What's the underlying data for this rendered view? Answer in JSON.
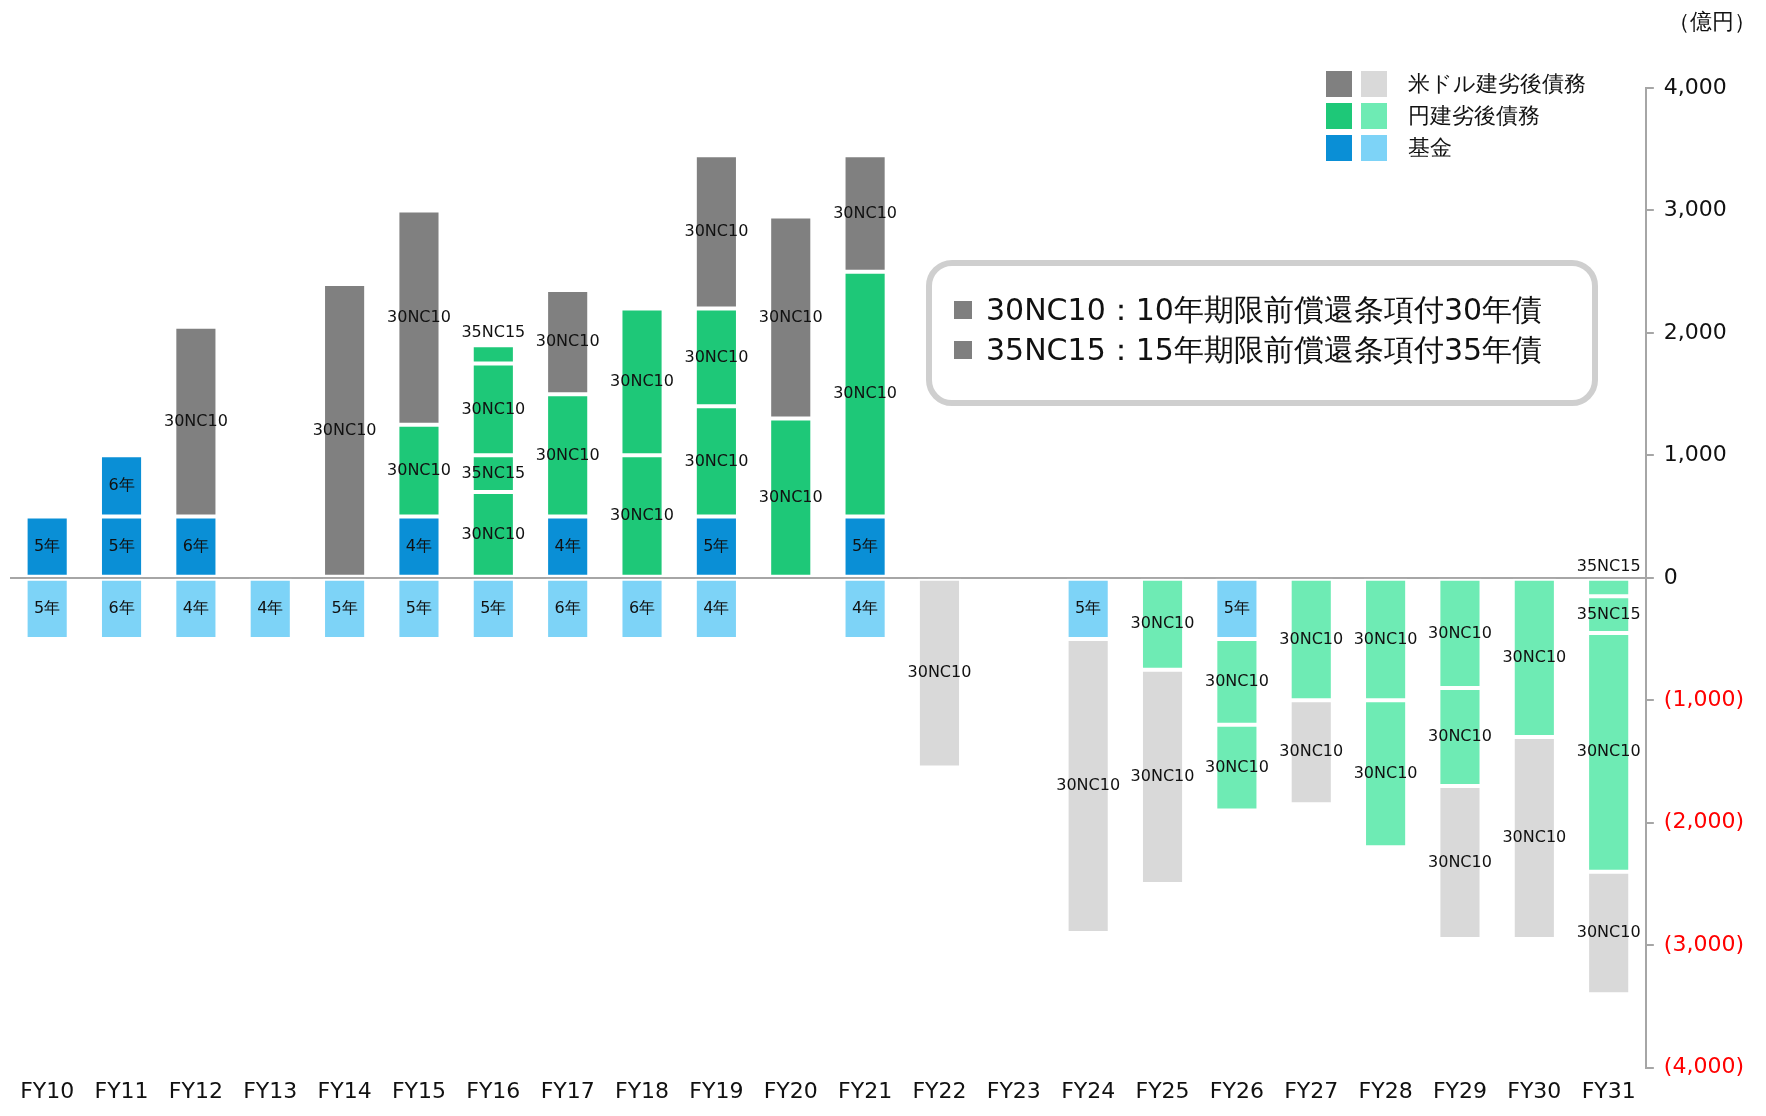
{
  "chart_data": {
    "type": "bar",
    "stacked": true,
    "ylabel": "（億円）",
    "legend": "top right",
    "categories": [
      "FY10",
      "FY11",
      "FY12",
      "FY13",
      "FY14",
      "FY15",
      "FY16",
      "FY17",
      "FY18",
      "FY19",
      "FY20",
      "FY21",
      "FY22",
      "FY23",
      "FY24",
      "FY25",
      "FY26",
      "FY27",
      "FY28",
      "FY29",
      "FY30",
      "FY31"
    ],
    "ylim": [
      -4000,
      4000
    ],
    "yticks": [
      {
        "value": -4000,
        "label": "(4,000)"
      },
      {
        "value": -3000,
        "label": "(3,000)"
      },
      {
        "value": -2000,
        "label": "(2,000)"
      },
      {
        "value": -1000,
        "label": "(1,000)"
      },
      0,
      {
        "value": 1000,
        "label": "1,000"
      },
      {
        "value": 2000,
        "label": "2,000"
      },
      {
        "value": 3000,
        "label": "3,000"
      },
      {
        "value": 4000,
        "label": "4,000"
      }
    ],
    "series": [
      {
        "name": "基金",
        "color": "#0a8fd6",
        "values": [
          500,
          500,
          500,
          null,
          null,
          500,
          null,
          500,
          null,
          500,
          null,
          500,
          null,
          null,
          null,
          null,
          null,
          null,
          null,
          null,
          null,
          null
        ]
      },
      {
        "color": "#0a8fd6",
        "values": [
          null,
          500,
          null,
          null,
          null,
          null,
          null,
          null,
          null,
          null,
          null,
          null,
          null,
          null,
          null,
          null,
          null,
          null,
          null,
          null,
          null,
          null
        ]
      },
      {
        "color": "#7dd3f7",
        "values": [
          -500,
          -500,
          -500,
          -500,
          -500,
          -500,
          -500,
          -500,
          -500,
          -500,
          null,
          -500,
          null,
          null,
          -500,
          null,
          -500,
          null,
          null,
          null,
          null,
          null
        ]
      },
      {
        "name": "円建劣後債務",
        "color": "#1ec878",
        "values": [
          null,
          null,
          null,
          null,
          null,
          750,
          700,
          1000,
          1000,
          900,
          1300,
          2000,
          null,
          null,
          null,
          null,
          null,
          null,
          null,
          null,
          null,
          null
        ]
      },
      {
        "color": "#1ec878",
        "values": [
          null,
          null,
          null,
          null,
          null,
          null,
          300,
          null,
          1200,
          800,
          null,
          null,
          null,
          null,
          null,
          null,
          null,
          null,
          null,
          null,
          null,
          null
        ]
      },
      {
        "color": "#1ec878",
        "values": [
          null,
          null,
          null,
          null,
          null,
          null,
          750,
          null,
          null,
          null,
          null,
          null,
          null,
          null,
          null,
          null,
          null,
          null,
          null,
          null,
          null,
          null
        ]
      },
      {
        "color": "#1ec878",
        "values": [
          null,
          null,
          null,
          null,
          null,
          null,
          150,
          null,
          null,
          null,
          null,
          null,
          null,
          null,
          null,
          null,
          null,
          null,
          null,
          null,
          null,
          null
        ]
      },
      {
        "color": "#6eebb4",
        "values": [
          null,
          null,
          null,
          null,
          null,
          null,
          null,
          null,
          null,
          null,
          null,
          null,
          null,
          null,
          null,
          -750,
          -700,
          -1000,
          -1000,
          -900,
          -1300,
          -150
        ]
      },
      {
        "color": "#6eebb4",
        "values": [
          null,
          null,
          null,
          null,
          null,
          null,
          null,
          null,
          null,
          null,
          null,
          null,
          null,
          null,
          null,
          null,
          -700,
          null,
          -1200,
          -800,
          null,
          -300
        ]
      },
      {
        "color": "#6eebb4",
        "values": [
          null,
          null,
          null,
          null,
          null,
          null,
          null,
          null,
          null,
          null,
          null,
          null,
          null,
          null,
          null,
          null,
          null,
          null,
          null,
          null,
          null,
          -1950
        ]
      },
      {
        "name": "米ドル建劣後債務",
        "color": "#808080",
        "values": [
          null,
          null,
          1550,
          null,
          2400,
          1750,
          null,
          850,
          null,
          1250,
          1650,
          950,
          null,
          null,
          null,
          null,
          null,
          null,
          null,
          null,
          null,
          null
        ]
      },
      {
        "color": "#d9d9d9",
        "values": [
          null,
          null,
          null,
          null,
          null,
          null,
          null,
          null,
          null,
          null,
          null,
          null,
          -1550,
          null,
          -2400,
          -1750,
          null,
          -850,
          null,
          -1250,
          -1650,
          -1000
        ]
      }
    ],
    "annotations": [
      "30NC10：10年期限前償還条項付30年債",
      "35NC15：15年期限前償還条項付35年債",
      "5年",
      "5年",
      "6年",
      "4年",
      "4年",
      "5年",
      "5年",
      "6年",
      "5年",
      "6年",
      "4年",
      "4年",
      "5年",
      "5年",
      "5年",
      "6年",
      "6年",
      "4年",
      "4年",
      "5年",
      "5年",
      "30NC10",
      "30NC10",
      "30NC10",
      "30NC10",
      "30NC10",
      "30NC10",
      "30NC10",
      "35NC15",
      "30NC10",
      "30NC10",
      "30NC10",
      "35NC15",
      "30NC10",
      "30NC10",
      "30NC10",
      "30NC10",
      "30NC10",
      "30NC10",
      "35NC15",
      "30NC10",
      "30NC10",
      "30NC10",
      "35NC15",
      "30NC10",
      "30NC10",
      "30NC10",
      "30NC10",
      "30NC10",
      "30NC10",
      "30NC10",
      "30NC10",
      "30NC10",
      "30NC10",
      "30NC10",
      "30NC10",
      "30NC10",
      "30NC10",
      "30NC10"
    ]
  }
}
